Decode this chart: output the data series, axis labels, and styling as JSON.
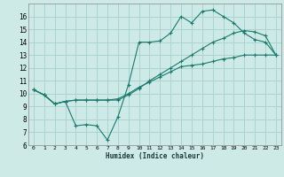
{
  "xlabel": "Humidex (Indice chaleur)",
  "background_color": "#ceeae7",
  "grid_color": "#aad4d0",
  "line_color": "#1a7a6e",
  "xlim": [
    -0.5,
    23.5
  ],
  "ylim": [
    6,
    17
  ],
  "yticks": [
    6,
    7,
    8,
    9,
    10,
    11,
    12,
    13,
    14,
    15,
    16
  ],
  "xticks": [
    0,
    1,
    2,
    3,
    4,
    5,
    6,
    7,
    8,
    9,
    10,
    11,
    12,
    13,
    14,
    15,
    16,
    17,
    18,
    19,
    20,
    21,
    22,
    23
  ],
  "series": [
    {
      "x": [
        0,
        1,
        2,
        3,
        4,
        5,
        6,
        7,
        8,
        9,
        10,
        11,
        12,
        13,
        14,
        15,
        16,
        17,
        18,
        19,
        20,
        21,
        22,
        23
      ],
      "y": [
        10.3,
        9.9,
        9.2,
        9.4,
        7.5,
        7.6,
        7.5,
        6.4,
        8.2,
        10.7,
        14.0,
        14.0,
        14.1,
        14.7,
        16.0,
        15.5,
        16.4,
        16.5,
        16.0,
        15.5,
        14.7,
        14.2,
        14.0,
        13.0
      ]
    },
    {
      "x": [
        0,
        1,
        2,
        3,
        4,
        5,
        6,
        7,
        8,
        9,
        10,
        11,
        12,
        13,
        14,
        15,
        16,
        17,
        18,
        19,
        20,
        21,
        22,
        23
      ],
      "y": [
        10.3,
        9.9,
        9.2,
        9.4,
        9.5,
        9.5,
        9.5,
        9.5,
        9.5,
        9.9,
        10.4,
        11.0,
        11.5,
        12.0,
        12.5,
        13.0,
        13.5,
        14.0,
        14.3,
        14.7,
        14.9,
        14.8,
        14.5,
        13.0
      ]
    },
    {
      "x": [
        0,
        1,
        2,
        3,
        4,
        5,
        6,
        7,
        8,
        9,
        10,
        11,
        12,
        13,
        14,
        15,
        16,
        17,
        18,
        19,
        20,
        21,
        22,
        23
      ],
      "y": [
        10.3,
        9.9,
        9.2,
        9.4,
        9.5,
        9.5,
        9.5,
        9.5,
        9.6,
        10.0,
        10.5,
        10.9,
        11.3,
        11.7,
        12.1,
        12.2,
        12.3,
        12.5,
        12.7,
        12.8,
        13.0,
        13.0,
        13.0,
        13.0
      ]
    }
  ]
}
